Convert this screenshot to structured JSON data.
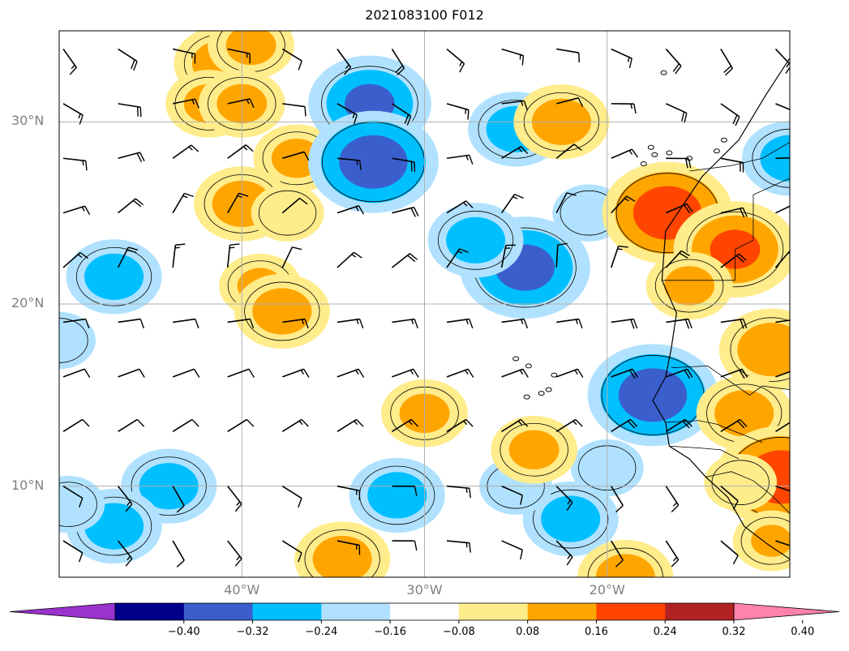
{
  "title": "2021083100 F012",
  "map": {
    "lon_range": [
      -50,
      -10
    ],
    "lat_range": [
      5,
      35
    ],
    "lat_labels": [
      {
        "lat": 30,
        "label": "30°N"
      },
      {
        "lat": 20,
        "label": "20°N"
      },
      {
        "lat": 10,
        "label": "10°N"
      }
    ],
    "lon_labels": [
      {
        "lon": -40,
        "label": "40°W"
      },
      {
        "lon": -30,
        "label": "30°W"
      },
      {
        "lon": -20,
        "label": "20°W"
      }
    ],
    "gridlines": true,
    "wind_barbs": true
  },
  "colorbar": {
    "extend": "both",
    "colors": [
      "#9a32cd",
      "#00008b",
      "#3a5fcd",
      "#00bfff",
      "#b0e2ff",
      "#ffffff",
      "#ffec8b",
      "#ffa500",
      "#ff4500",
      "#b22222",
      "#ff82ab"
    ],
    "ticks": [
      "−0.40",
      "−0.32",
      "−0.24",
      "−0.16",
      "−0.08",
      "0.08",
      "0.16",
      "0.24",
      "0.32",
      "0.40"
    ]
  },
  "features": [
    {
      "lon": -41.1,
      "lat": 33.2,
      "value": 0.2
    },
    {
      "lon": -39.5,
      "lat": 34.2,
      "value": 0.18
    },
    {
      "lon": -41.8,
      "lat": 31.0,
      "value": 0.18
    },
    {
      "lon": -40.0,
      "lat": 31.0,
      "value": 0.18
    },
    {
      "lon": -37.0,
      "lat": 28.0,
      "value": 0.18
    },
    {
      "lon": -40.0,
      "lat": 25.5,
      "value": 0.2
    },
    {
      "lon": -37.5,
      "lat": 25.0,
      "value": 0.15
    },
    {
      "lon": -39.0,
      "lat": 21.0,
      "value": 0.17
    },
    {
      "lon": -37.8,
      "lat": 19.6,
      "value": 0.2
    },
    {
      "lon": -47.0,
      "lat": 21.5,
      "value": -0.2
    },
    {
      "lon": -50.0,
      "lat": 18.0,
      "value": -0.15
    },
    {
      "lon": -33.0,
      "lat": 31.0,
      "value": -0.26
    },
    {
      "lon": -32.8,
      "lat": 27.8,
      "value": -0.3
    },
    {
      "lon": -25.0,
      "lat": 29.6,
      "value": -0.2
    },
    {
      "lon": -22.5,
      "lat": 30.0,
      "value": 0.2
    },
    {
      "lon": -24.5,
      "lat": 22.0,
      "value": -0.28
    },
    {
      "lon": -27.2,
      "lat": 23.5,
      "value": -0.2
    },
    {
      "lon": -21.0,
      "lat": 25.0,
      "value": -0.15
    },
    {
      "lon": -16.7,
      "lat": 25.0,
      "value": 0.3
    },
    {
      "lon": -13.0,
      "lat": 23.0,
      "value": 0.26
    },
    {
      "lon": -15.5,
      "lat": 21.0,
      "value": 0.18
    },
    {
      "lon": -11.0,
      "lat": 17.5,
      "value": 0.22
    },
    {
      "lon": -17.5,
      "lat": 15.0,
      "value": -0.3
    },
    {
      "lon": -12.5,
      "lat": 14.0,
      "value": 0.2
    },
    {
      "lon": -10.5,
      "lat": 10.5,
      "value": 0.3
    },
    {
      "lon": -12.7,
      "lat": 10.2,
      "value": 0.15
    },
    {
      "lon": -31.5,
      "lat": 9.5,
      "value": -0.2
    },
    {
      "lon": -22.0,
      "lat": 8.2,
      "value": -0.2
    },
    {
      "lon": -25.0,
      "lat": 10.0,
      "value": -0.15
    },
    {
      "lon": -20.0,
      "lat": 11.0,
      "value": -0.15
    },
    {
      "lon": -24.0,
      "lat": 12.0,
      "value": 0.18
    },
    {
      "lon": -30.0,
      "lat": 14.0,
      "value": 0.18
    },
    {
      "lon": -44.0,
      "lat": 10.0,
      "value": -0.2
    },
    {
      "lon": -47.0,
      "lat": 7.8,
      "value": -0.2
    },
    {
      "lon": -49.5,
      "lat": 9.0,
      "value": -0.15
    },
    {
      "lon": -34.5,
      "lat": 6.0,
      "value": 0.2
    },
    {
      "lon": -19.0,
      "lat": 5.0,
      "value": 0.2
    },
    {
      "lon": -10.0,
      "lat": 28.0,
      "value": -0.2
    },
    {
      "lon": -11.0,
      "lat": 7.0,
      "value": 0.16
    },
    {
      "lon": -28.0,
      "lat": 13.0,
      "value": 0.0
    }
  ]
}
